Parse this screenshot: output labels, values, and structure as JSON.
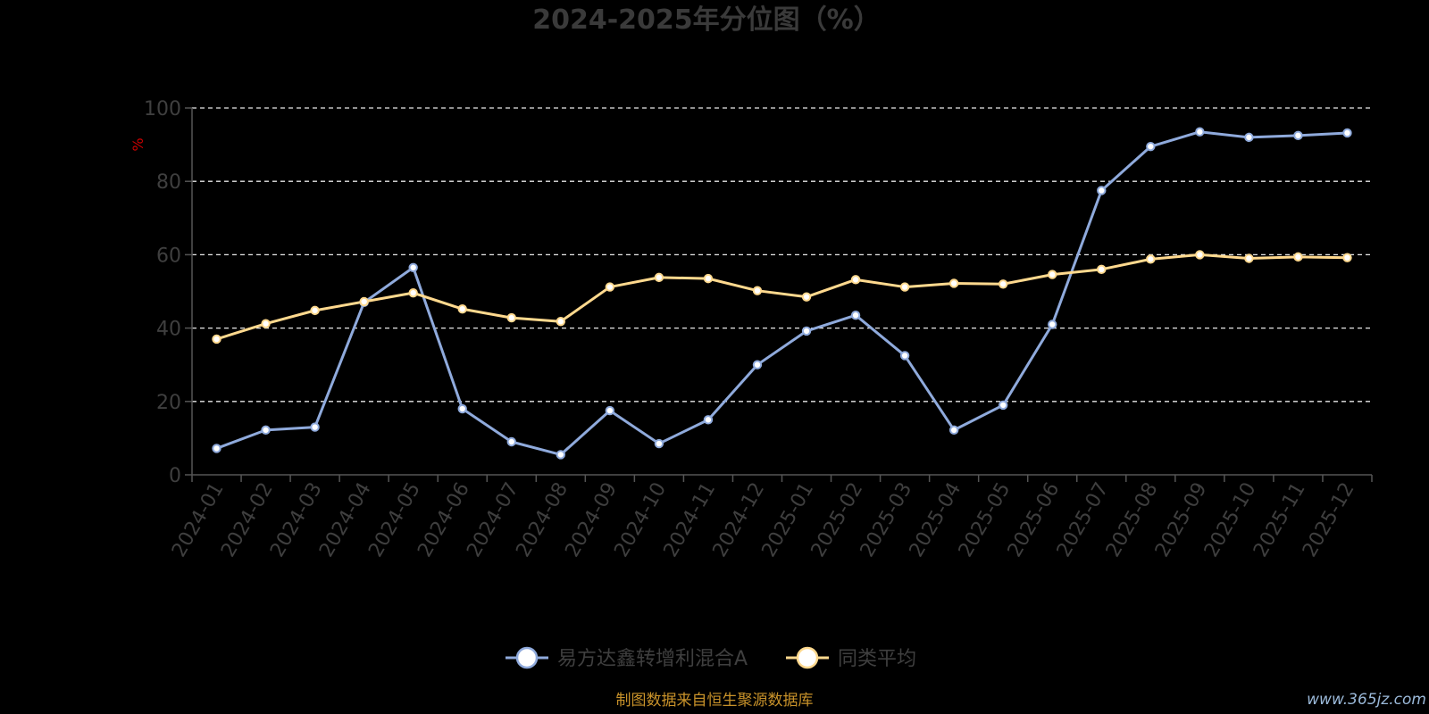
{
  "chart_data": {
    "type": "line",
    "title": "2024-2025年分位图（%）",
    "ylabel": "%",
    "xlabel": "",
    "ylim": [
      0,
      100
    ],
    "y_ticks": [
      "0",
      "20",
      "40",
      "60",
      "80",
      "100"
    ],
    "categories": [
      "2024-01",
      "2024-02",
      "2024-03",
      "2024-04",
      "2024-05",
      "2024-06",
      "2024-07",
      "2024-08",
      "2024-09",
      "2024-10",
      "2024-11",
      "2024-12",
      "2025-01",
      "2025-02",
      "2025-03",
      "2025-04",
      "2025-05",
      "2025-06",
      "2025-07",
      "2025-08",
      "2025-09",
      "2025-10",
      "2025-11",
      "2025-12"
    ],
    "grid": "horizontal dashed",
    "legend_position": "bottom-center",
    "series": [
      {
        "name": "易方达鑫转增利混合A",
        "color": "#8faadc",
        "values": [
          7.2,
          12.2,
          13.0,
          47.0,
          56.5,
          18.0,
          9.0,
          5.5,
          17.5,
          8.5,
          15.0,
          30.0,
          39.2,
          43.5,
          32.5,
          12.2,
          19.0,
          41.0,
          77.5,
          89.5,
          93.5,
          92.0,
          92.5,
          93.2
        ]
      },
      {
        "name": "同类平均",
        "color": "#ffd98e",
        "values": [
          37.0,
          41.2,
          44.8,
          47.2,
          49.6,
          45.2,
          42.8,
          41.8,
          51.2,
          53.8,
          53.5,
          50.2,
          48.5,
          53.2,
          51.2,
          52.2,
          52.0,
          54.6,
          56.0,
          58.8,
          60.0,
          59.0,
          59.4,
          59.2
        ]
      }
    ]
  },
  "source_note": "制图数据来自恒生聚源数据库",
  "watermark": "www.365jz.com"
}
